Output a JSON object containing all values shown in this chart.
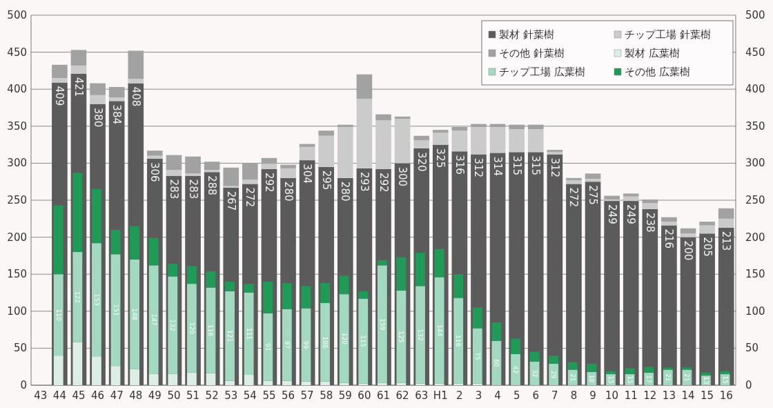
{
  "chart_data": {
    "type": "bar",
    "stacked": true,
    "categories": [
      "43",
      "44",
      "45",
      "46",
      "47",
      "48",
      "49",
      "50",
      "51",
      "52",
      "53",
      "54",
      "55",
      "56",
      "57",
      "58",
      "59",
      "60",
      "61",
      "62",
      "63",
      "H1",
      "2",
      "3",
      "4",
      "5",
      "6",
      "7",
      "8",
      "9",
      "10",
      "11",
      "12",
      "13",
      "14",
      "15",
      "16"
    ],
    "series": [
      {
        "name": "製材 針葉樹",
        "color": "#5b5b5b",
        "values": [
          null,
          409,
          421,
          380,
          384,
          408,
          306,
          283,
          283,
          288,
          267,
          272,
          292,
          280,
          304,
          295,
          280,
          293,
          292,
          300,
          320,
          325,
          316,
          312,
          314,
          315,
          315,
          312,
          272,
          275,
          249,
          249,
          238,
          216,
          200,
          205,
          213
        ],
        "value_labels": [
          null,
          "409",
          "421",
          "380",
          "384",
          "408",
          "306",
          "283",
          "283",
          "288",
          "267",
          "272",
          "292",
          "280",
          "304",
          "295",
          "280",
          "293",
          "292",
          "300",
          "320",
          "325",
          "316",
          "312",
          "314",
          "315",
          "315",
          "312",
          "272",
          "275",
          "249",
          "249",
          "238",
          "216",
          "200",
          "205",
          "213"
        ]
      },
      {
        "name": "チップ工場 針葉樹",
        "color": "#cbcbcb",
        "values": [
          null,
          6,
          11,
          12,
          5,
          6,
          4,
          8,
          3,
          3,
          2,
          6,
          7,
          13,
          18,
          42,
          69,
          94,
          66,
          60,
          11,
          16,
          28,
          37,
          35,
          31,
          31,
          3,
          5,
          4,
          2,
          6,
          8,
          5,
          5,
          11,
          12
        ]
      },
      {
        "name": "その他 針葉樹",
        "color": "#a2a2a2",
        "values": [
          null,
          18,
          21,
          16,
          14,
          38,
          7,
          20,
          23,
          11,
          25,
          22,
          8,
          5,
          4,
          7,
          3,
          33,
          8,
          3,
          6,
          4,
          5,
          4,
          4,
          6,
          6,
          3,
          3,
          7,
          5,
          4,
          5,
          6,
          7,
          5,
          14
        ]
      },
      {
        "name": "製材 広葉樹",
        "axis": "y2",
        "color": "#dcefe6",
        "values": [
          null,
          40,
          58,
          39,
          26,
          22,
          15,
          15,
          17,
          16,
          6,
          14,
          6,
          6,
          5,
          5,
          3,
          2,
          3,
          3,
          2,
          2,
          2,
          2,
          0,
          0,
          0,
          0,
          0,
          0,
          0,
          0,
          0,
          0,
          0,
          0,
          0
        ]
      },
      {
        "name": "チップ工場 広葉樹",
        "axis": "y2",
        "color": "#a3d8c1",
        "values": [
          null,
          110,
          122,
          153,
          151,
          148,
          147,
          132,
          120,
          116,
          121,
          111,
          91,
          97,
          99,
          106,
          120,
          115,
          159,
          125,
          132,
          144,
          116,
          75,
          60,
          42,
          32,
          29,
          21,
          18,
          15,
          15,
          17,
          21,
          21,
          13,
          15
        ],
        "value_labels": [
          null,
          "110",
          "122",
          "153",
          "151",
          "148",
          "147",
          "132",
          "120",
          "116",
          "121",
          "111",
          "91",
          "97",
          "99",
          "106",
          "120",
          "115",
          "159",
          "125",
          "132",
          "144",
          "116",
          "75",
          "60",
          "42",
          "32",
          "29",
          "21",
          "18",
          "15",
          "15",
          "17",
          "21",
          "21",
          "13",
          "15"
        ]
      },
      {
        "name": "その他 広葉樹",
        "axis": "y2",
        "color": "#1f9a57",
        "values": [
          null,
          93,
          107,
          73,
          33,
          45,
          37,
          17,
          24,
          22,
          13,
          12,
          43,
          35,
          30,
          27,
          25,
          10,
          7,
          45,
          45,
          38,
          32,
          28,
          25,
          21,
          13,
          11,
          10,
          11,
          4,
          8,
          8,
          3,
          3,
          4,
          4
        ]
      }
    ],
    "ylim": [
      0,
      500
    ],
    "yticks": [
      0,
      50,
      100,
      150,
      200,
      250,
      300,
      350,
      400,
      450,
      500
    ],
    "y2lim": [
      0,
      500
    ],
    "y2ticks": [
      0,
      50,
      100,
      150,
      200,
      250,
      300,
      350,
      400,
      450,
      500
    ],
    "grid": "y",
    "legend": "top right"
  }
}
